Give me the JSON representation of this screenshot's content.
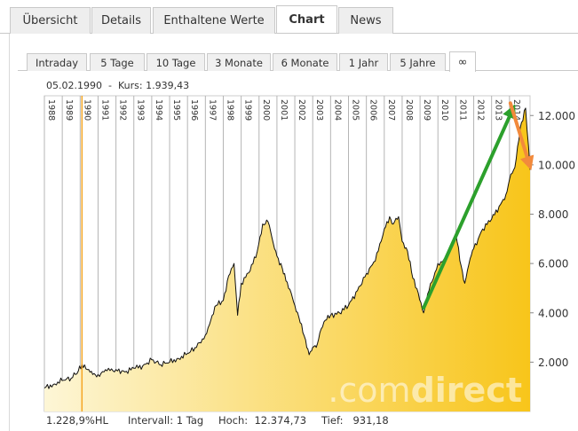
{
  "main_tabs": [
    {
      "label": "Übersicht"
    },
    {
      "label": "Details"
    },
    {
      "label": "Enthaltene Werte"
    },
    {
      "label": "Chart"
    },
    {
      "label": "News"
    }
  ],
  "active_main_tab": "Chart",
  "period_tabs": [
    {
      "label": "Intraday"
    },
    {
      "label": "5 Tage"
    },
    {
      "label": "10 Tage"
    },
    {
      "label": "3 Monate"
    },
    {
      "label": "6 Monate"
    },
    {
      "label": "1 Jahr"
    },
    {
      "label": "5 Jahre"
    },
    {
      "label": "∞"
    }
  ],
  "active_period_tab": "∞",
  "chart_header": {
    "date": "05.02.1990",
    "separator": "-",
    "kurs_label": "Kurs:",
    "kurs_value": "1.939,43"
  },
  "chart_footer": {
    "performance": "1.228,9%HL",
    "interval_label": "Intervall:",
    "interval_value": "1 Tag",
    "high_label": "Hoch:",
    "high_value": "12.374,73",
    "low_label": "Tief:",
    "low_value": "931,18"
  },
  "watermark": {
    "part1": ".com",
    "part2": "direct"
  },
  "colors": {
    "fill_light": "#fdf6d6",
    "fill_dark": "#f8c51a",
    "line": "#111111",
    "grid": "#b5b5b5",
    "cursor": "#f5a623",
    "arrow_up": "#2ca02c",
    "arrow_down": "#f28a3c"
  },
  "chart_data": {
    "type": "area",
    "title": "",
    "xlabel": "",
    "ylabel": "",
    "x_ticks": [
      "1988",
      "1989",
      "1990",
      "1991",
      "1992",
      "1993",
      "1994",
      "1995",
      "1996",
      "1997",
      "1998",
      "1999",
      "2000",
      "2001",
      "2002",
      "2003",
      "2004",
      "2005",
      "2006",
      "2007",
      "2008",
      "2009",
      "2010",
      "2011",
      "2012",
      "2013",
      "2014"
    ],
    "y_ticks": [
      {
        "value": 2000,
        "label": "2.000"
      },
      {
        "value": 4000,
        "label": "4.000"
      },
      {
        "value": 6000,
        "label": "6.000"
      },
      {
        "value": 8000,
        "label": "8.000"
      },
      {
        "value": 10000,
        "label": "10.000"
      },
      {
        "value": 12000,
        "label": "12.000"
      }
    ],
    "xlim": [
      1988.0,
      2015.15
    ],
    "ylim": [
      0,
      12800
    ],
    "grid": true,
    "cursor_x": 1990.1,
    "series": [
      {
        "x": [
          1988.0,
          1988.5,
          1989.0,
          1989.5,
          1989.9,
          1990.1,
          1990.4,
          1990.7,
          1991.0,
          1991.5,
          1992.0,
          1992.5,
          1993.0,
          1993.5,
          1994.0,
          1994.5,
          1995.0,
          1995.5,
          1996.0,
          1996.5,
          1997.0,
          1997.3,
          1997.6,
          1998.0,
          1998.3,
          1998.6,
          1998.8,
          1999.0,
          1999.5,
          1999.9,
          2000.2,
          2000.5,
          2000.8,
          2001.0,
          2001.3,
          2001.5,
          2001.8,
          2002.0,
          2002.3,
          2002.6,
          2002.8,
          2003.0,
          2003.2,
          2003.4,
          2003.7,
          2004.0,
          2004.5,
          2005.0,
          2005.5,
          2006.0,
          2006.5,
          2007.0,
          2007.3,
          2007.5,
          2007.8,
          2008.0,
          2008.3,
          2008.6,
          2008.9,
          2009.2,
          2009.5,
          2010.0,
          2010.5,
          2011.0,
          2011.3,
          2011.5,
          2011.8,
          2012.0,
          2012.5,
          2013.0,
          2013.5,
          2013.8,
          2014.0,
          2014.3,
          2014.6,
          2014.9,
          2015.15
        ],
        "y": [
          950,
          1100,
          1250,
          1350,
          1650,
          1950,
          1700,
          1500,
          1500,
          1650,
          1700,
          1600,
          1750,
          1850,
          2100,
          1900,
          2000,
          2150,
          2350,
          2600,
          3100,
          3700,
          4300,
          4500,
          5500,
          6000,
          3900,
          5200,
          5700,
          6500,
          7600,
          7700,
          6800,
          6300,
          5800,
          5300,
          4800,
          4300,
          3600,
          2900,
          2300,
          2600,
          2600,
          3200,
          3700,
          3900,
          4000,
          4300,
          4900,
          5600,
          6100,
          7400,
          7900,
          7600,
          7900,
          6900,
          6500,
          5400,
          4800,
          4000,
          4900,
          6000,
          6200,
          7200,
          5900,
          5200,
          6200,
          6600,
          7400,
          7800,
          8400,
          8800,
          9400,
          9900,
          11500,
          12300,
          9800
        ]
      }
    ],
    "annotations": [
      {
        "type": "arrow",
        "color": "green",
        "from": [
          2009.2,
          4200
        ],
        "to": [
          2014.15,
          12200
        ]
      },
      {
        "type": "arrow",
        "color": "orange",
        "from": [
          2014.05,
          12500
        ],
        "to": [
          2015.1,
          10050
        ]
      }
    ]
  }
}
